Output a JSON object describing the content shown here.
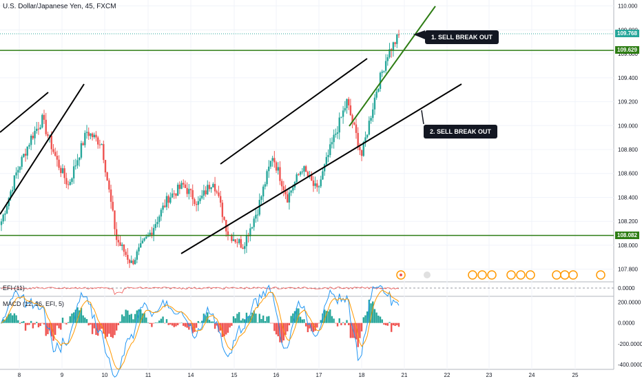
{
  "header": {
    "symbol_title": "U.S. Dollar/Japanese Yen, 45, FXCM"
  },
  "price_axis": {
    "ticks": [
      "110.000",
      "109.800",
      "109.600",
      "109.400",
      "109.200",
      "109.000",
      "108.800",
      "108.600",
      "108.400",
      "108.200",
      "108.000",
      "107.800"
    ],
    "tick_values": [
      110.0,
      109.8,
      109.6,
      109.4,
      109.2,
      109.0,
      108.8,
      108.6,
      108.4,
      108.2,
      108.0,
      107.8
    ]
  },
  "time_axis": {
    "labels": [
      "8",
      "9",
      "10",
      "11",
      "14",
      "15",
      "16",
      "17",
      "18",
      "21",
      "22",
      "23",
      "24",
      "25"
    ]
  },
  "levels": {
    "current_price": "109.768",
    "upper_support": "109.629",
    "lower_support": "108.082",
    "current_color": "#26a69a",
    "level_color": "#2e7d14"
  },
  "annotations": {
    "sell1": "1. SELL BREAK OUT",
    "sell2": "2. SELL BREAK OUT"
  },
  "indicators": {
    "efi_label": "EFI (11)",
    "efi_tick": "0.0000",
    "macd_label": "MACD (12, 26, EFI, 5)",
    "macd_ticks": [
      "200.0000",
      "0.0000",
      "-200.0000",
      "-400.0000"
    ],
    "macd_tick_values": [
      200,
      0,
      -200,
      -400
    ]
  },
  "colors": {
    "up": "#26a69a",
    "down": "#ef5350",
    "macd_line": "#2196f3",
    "signal_line": "#ff9800",
    "trendline_black": "#000000",
    "trendline_green": "#2e7d14"
  },
  "chart_data": {
    "type": "candlestick",
    "symbol": "U.S. Dollar/Japanese Yen, 45, FXCM",
    "ylim": [
      107.7,
      110.05
    ],
    "x_labels": [
      "8",
      "9",
      "10",
      "11",
      "14",
      "15",
      "16",
      "17",
      "18",
      "21",
      "22",
      "23",
      "24",
      "25"
    ],
    "anchors": [
      [
        0,
        108.2
      ],
      [
        8,
        108.6
      ],
      [
        16,
        108.9
      ],
      [
        22,
        109.05
      ],
      [
        30,
        108.7
      ],
      [
        36,
        108.5
      ],
      [
        46,
        108.95
      ],
      [
        54,
        108.85
      ],
      [
        62,
        108.05
      ],
      [
        70,
        107.85
      ],
      [
        80,
        108.1
      ],
      [
        90,
        108.4
      ],
      [
        98,
        108.5
      ],
      [
        106,
        108.35
      ],
      [
        114,
        108.55
      ],
      [
        122,
        108.1
      ],
      [
        130,
        108.0
      ],
      [
        138,
        108.3
      ],
      [
        146,
        108.75
      ],
      [
        154,
        108.4
      ],
      [
        162,
        108.65
      ],
      [
        170,
        108.45
      ],
      [
        178,
        108.85
      ],
      [
        186,
        109.2
      ],
      [
        194,
        108.75
      ],
      [
        202,
        109.3
      ],
      [
        208,
        109.6
      ],
      [
        214,
        109.75
      ]
    ],
    "levels": [
      109.768,
      109.629,
      108.082
    ],
    "annotations": [
      "1. SELL BREAK OUT",
      "2. SELL BREAK OUT"
    ]
  }
}
